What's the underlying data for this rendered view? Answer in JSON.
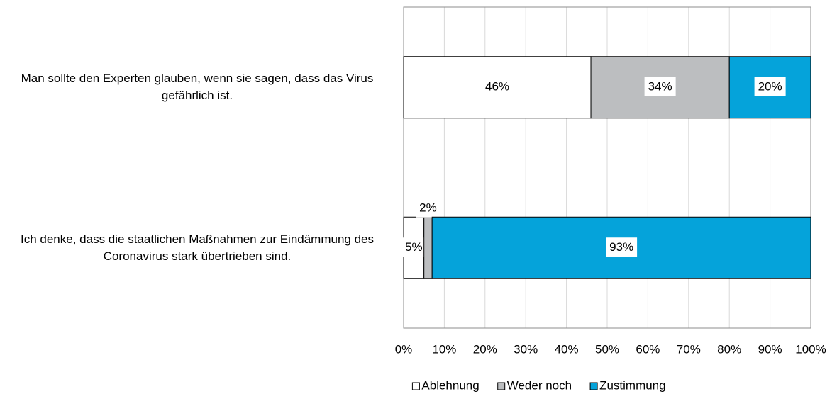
{
  "chart_data": {
    "type": "stacked_barh",
    "categories": [
      "Man sollte den Experten glauben, wenn sie sagen, dass das Virus gefährlich ist.",
      "Ich denke, dass die staatlichen Maßnahmen zur Eindämmung des Coronavirus stark übertrieben sind."
    ],
    "series": [
      {
        "name": "Ablehnung",
        "color": "#ffffff",
        "values": [
          46,
          5
        ],
        "value_labels": [
          "46%",
          "5%"
        ]
      },
      {
        "name": "Weder noch",
        "color": "#bcbec0",
        "values": [
          34,
          2
        ],
        "value_labels": [
          "34%",
          "2%"
        ]
      },
      {
        "name": "Zustimmung",
        "color": "#05a3da",
        "values": [
          20,
          93
        ],
        "value_labels": [
          "20%",
          "93%"
        ]
      }
    ],
    "xlim": [
      0,
      100
    ],
    "xticks": [
      {
        "value": 0,
        "label": "0%"
      },
      {
        "value": 10,
        "label": "10%"
      },
      {
        "value": 20,
        "label": "20%"
      },
      {
        "value": 30,
        "label": "30%"
      },
      {
        "value": 40,
        "label": "40%"
      },
      {
        "value": 50,
        "label": "50%"
      },
      {
        "value": 60,
        "label": "60%"
      },
      {
        "value": 70,
        "label": "70%"
      },
      {
        "value": 80,
        "label": "80%"
      },
      {
        "value": 90,
        "label": "90%"
      },
      {
        "value": 100,
        "label": "100%"
      }
    ],
    "grid": true,
    "legend": "bottom"
  }
}
